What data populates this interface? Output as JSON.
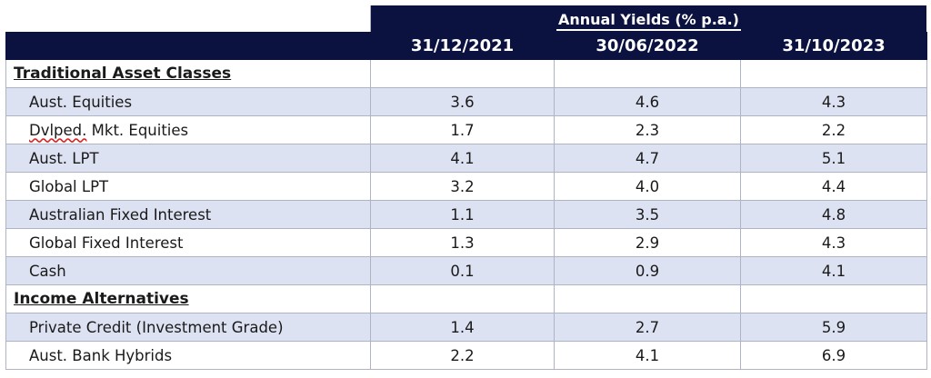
{
  "header": {
    "group_title": "Annual Yields (% p.a.)",
    "columns": [
      "31/12/2021",
      "30/06/2022",
      "31/10/2023"
    ]
  },
  "rows": [
    {
      "type": "section",
      "label": "Traditional Asset Classes"
    },
    {
      "type": "data",
      "label": "Aust. Equities",
      "values": [
        "3.6",
        "4.6",
        "4.3"
      ]
    },
    {
      "type": "data",
      "label_a": "Dvlped.",
      "label_b": " Mkt. Equities",
      "values": [
        "1.7",
        "2.3",
        "2.2"
      ]
    },
    {
      "type": "data",
      "label": "Aust. LPT",
      "values": [
        "4.1",
        "4.7",
        "5.1"
      ]
    },
    {
      "type": "data",
      "label": "Global LPT",
      "values": [
        "3.2",
        "4.0",
        "4.4"
      ]
    },
    {
      "type": "data",
      "label": "Australian Fixed Interest",
      "values": [
        "1.1",
        "3.5",
        "4.8"
      ]
    },
    {
      "type": "data",
      "label": "Global Fixed Interest",
      "values": [
        "1.3",
        "2.9",
        "4.3"
      ]
    },
    {
      "type": "data",
      "label": "Cash",
      "values": [
        "0.1",
        "0.9",
        "4.1"
      ]
    },
    {
      "type": "section",
      "label": "Income Alternatives"
    },
    {
      "type": "data",
      "label": "Private Credit (Investment Grade)",
      "values": [
        "1.4",
        "2.7",
        "5.9"
      ]
    },
    {
      "type": "data",
      "label": "Aust. Bank Hybrids",
      "values": [
        "2.2",
        "4.1",
        "6.9"
      ]
    }
  ],
  "colors": {
    "header_bg": "#0b1240",
    "stripe_bg": "#dce2f2",
    "border": "#aeb4c4"
  }
}
